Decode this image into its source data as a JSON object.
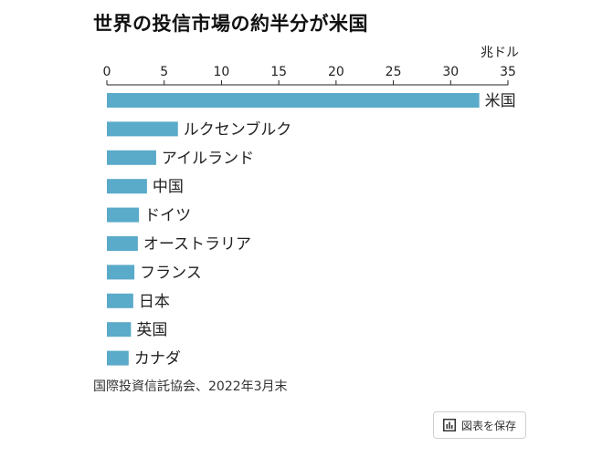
{
  "chart_data": {
    "type": "bar",
    "orientation": "horizontal",
    "title": "世界の投信市場の約半分が米国",
    "unit": "兆ドル",
    "categories": [
      "米国",
      "ルクセンブルク",
      "アイルランド",
      "中国",
      "ドイツ",
      "オーストラリア",
      "フランス",
      "日本",
      "英国",
      "カナダ"
    ],
    "values": [
      32.5,
      6.2,
      4.3,
      3.5,
      2.8,
      2.7,
      2.4,
      2.3,
      2.1,
      1.9
    ],
    "xlim": [
      0,
      35
    ],
    "xticks": [
      0,
      5,
      10,
      15,
      20,
      25,
      30,
      35
    ],
    "bar_color": "#5aaac9",
    "grid": false
  },
  "source": "国際投資信託協会、2022年3月末",
  "save_button": {
    "label": "図表を保存",
    "icon": "bar-chart-icon"
  }
}
